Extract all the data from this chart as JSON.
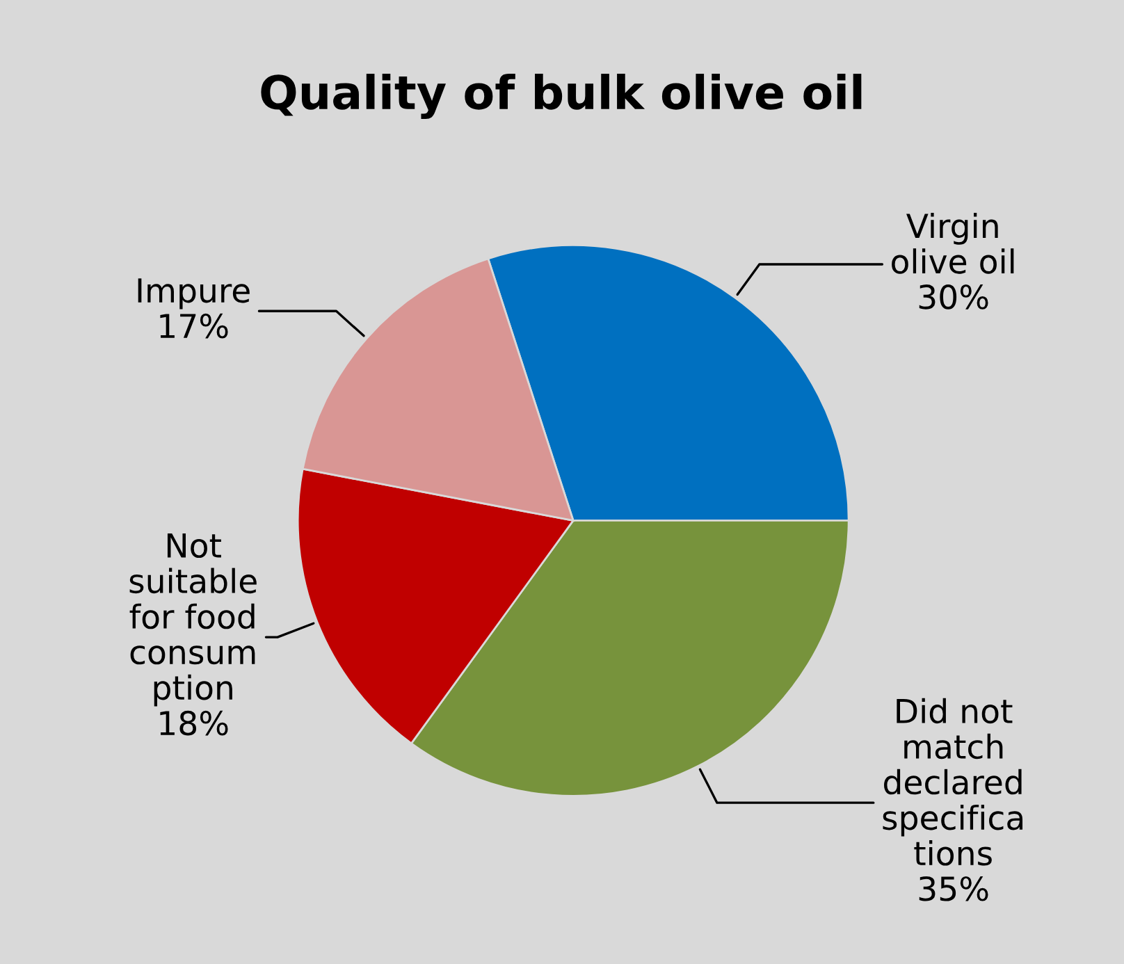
{
  "chart_data": {
    "type": "pie",
    "title": "Quality of bulk olive oil",
    "categories": [
      "Virgin\nolive oil",
      "Did not\nmatch\ndeclared\nspecifica\ntions",
      "Not\nsuitable\nfor food\nconsum\nption",
      "Impure"
    ],
    "values": [
      30,
      35,
      18,
      17
    ],
    "colors": [
      "#0070c0",
      "#77933c",
      "#c00000",
      "#d99694"
    ],
    "value_labels": [
      "30%",
      "35%",
      "18%",
      "17%"
    ]
  }
}
